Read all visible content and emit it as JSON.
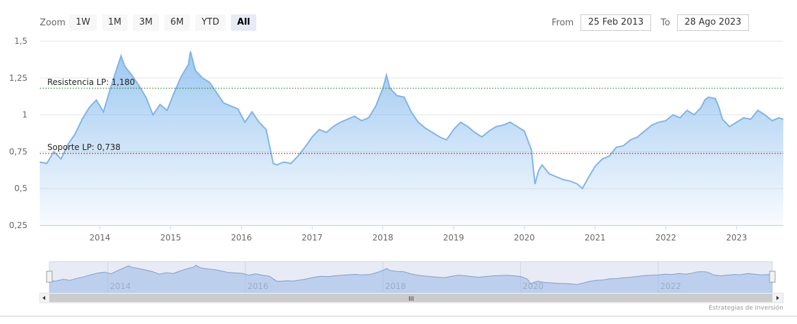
{
  "toolbar": {
    "zoom_label": "Zoom",
    "buttons": [
      "1W",
      "1M",
      "3M",
      "6M",
      "YTD",
      "All"
    ],
    "active": "All",
    "from_label": "From",
    "from_value": "25 Feb 2013",
    "to_label": "To",
    "to_value": "28 Ago 2023"
  },
  "credit": "Estrategias de Inversión",
  "navigator": {
    "labels": [
      "2014",
      "2016",
      "2018",
      "2020",
      "2022"
    ],
    "grip": "III"
  },
  "colors": {
    "line": "#7cb5ec",
    "resistance": "#2e8b2e",
    "support": "#cc2222",
    "grid": "#e6e6e6"
  },
  "chart_data": {
    "type": "area",
    "title": "",
    "xlabel": "",
    "ylabel": "",
    "ylim": [
      0.25,
      1.5
    ],
    "yticks": [
      "0,25",
      "0,5",
      "0,75",
      "1",
      "1,25",
      "1,5"
    ],
    "ytick_values": [
      0.25,
      0.5,
      0.75,
      1,
      1.25,
      1.5
    ],
    "xlim": [
      2013.15,
      2023.66
    ],
    "xticks": [
      "2014",
      "2015",
      "2016",
      "2017",
      "2018",
      "2019",
      "2020",
      "2021",
      "2022",
      "2023"
    ],
    "grid": true,
    "annotations": [
      {
        "label": "Resistencia LP: 1,180",
        "value": 1.18,
        "kind": "resistance"
      },
      {
        "label": "Soporte LP: 0,738",
        "value": 0.738,
        "kind": "support"
      }
    ],
    "series": [
      {
        "x": [
          2013.15,
          2013.25,
          2013.35,
          2013.45,
          2013.55,
          2013.65,
          2013.75,
          2013.85,
          2013.95,
          2014.05,
          2014.15,
          2014.25,
          2014.3,
          2014.35,
          2014.45,
          2014.55,
          2014.65,
          2014.75,
          2014.85,
          2014.95,
          2015.05,
          2015.15,
          2015.25,
          2015.28,
          2015.35,
          2015.45,
          2015.55,
          2015.65,
          2015.75,
          2015.85,
          2015.95,
          2016.05,
          2016.15,
          2016.25,
          2016.35,
          2016.45,
          2016.5,
          2016.6,
          2016.7,
          2016.8,
          2016.9,
          2017.0,
          2017.1,
          2017.2,
          2017.3,
          2017.4,
          2017.5,
          2017.6,
          2017.7,
          2017.8,
          2017.9,
          2018.0,
          2018.05,
          2018.1,
          2018.2,
          2018.3,
          2018.4,
          2018.5,
          2018.6,
          2018.7,
          2018.8,
          2018.9,
          2019.0,
          2019.1,
          2019.2,
          2019.3,
          2019.4,
          2019.5,
          2019.6,
          2019.7,
          2019.8,
          2019.9,
          2020.0,
          2020.1,
          2020.15,
          2020.2,
          2020.25,
          2020.35,
          2020.45,
          2020.55,
          2020.65,
          2020.75,
          2020.82,
          2020.9,
          2021.0,
          2021.1,
          2021.2,
          2021.3,
          2021.4,
          2021.5,
          2021.6,
          2021.7,
          2021.8,
          2021.9,
          2022.0,
          2022.1,
          2022.2,
          2022.3,
          2022.4,
          2022.5,
          2022.55,
          2022.6,
          2022.7,
          2022.75,
          2022.8,
          2022.9,
          2023.0,
          2023.1,
          2023.2,
          2023.3,
          2023.4,
          2023.5,
          2023.6,
          2023.66
        ],
        "y": [
          0.68,
          0.67,
          0.75,
          0.7,
          0.8,
          0.87,
          0.97,
          1.05,
          1.1,
          1.02,
          1.18,
          1.33,
          1.4,
          1.33,
          1.27,
          1.2,
          1.12,
          1.0,
          1.07,
          1.03,
          1.15,
          1.26,
          1.34,
          1.43,
          1.3,
          1.25,
          1.22,
          1.15,
          1.08,
          1.06,
          1.04,
          0.95,
          1.02,
          0.95,
          0.9,
          0.67,
          0.66,
          0.68,
          0.67,
          0.72,
          0.78,
          0.85,
          0.9,
          0.88,
          0.92,
          0.95,
          0.97,
          0.99,
          0.96,
          0.98,
          1.06,
          1.18,
          1.27,
          1.18,
          1.13,
          1.12,
          1.02,
          0.95,
          0.91,
          0.88,
          0.85,
          0.83,
          0.9,
          0.95,
          0.92,
          0.88,
          0.85,
          0.89,
          0.92,
          0.93,
          0.95,
          0.92,
          0.89,
          0.76,
          0.53,
          0.62,
          0.66,
          0.6,
          0.58,
          0.56,
          0.55,
          0.53,
          0.5,
          0.57,
          0.65,
          0.7,
          0.72,
          0.78,
          0.79,
          0.83,
          0.85,
          0.89,
          0.93,
          0.95,
          0.96,
          1.0,
          0.98,
          1.03,
          1.0,
          1.05,
          1.1,
          1.12,
          1.11,
          1.05,
          0.97,
          0.92,
          0.95,
          0.98,
          0.97,
          1.03,
          1.0,
          0.96,
          0.98,
          0.97
        ]
      }
    ]
  }
}
